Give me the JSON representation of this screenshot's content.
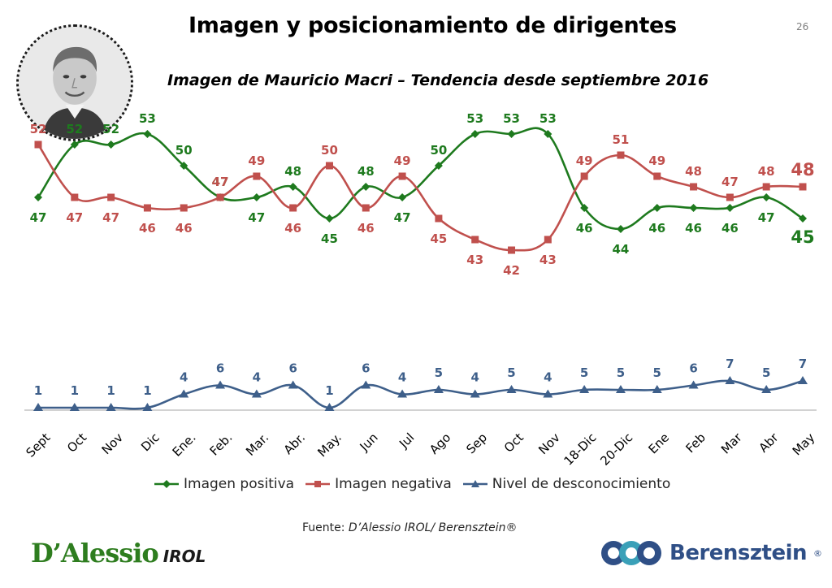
{
  "header": {
    "title": "Imagen y posicionamiento de dirigentes",
    "page_number": "26",
    "subtitle": "Imagen de Mauricio Macri – Tendencia desde septiembre 2016"
  },
  "portrait": {
    "icon": "person-portrait-icon"
  },
  "colors": {
    "positive": "#1e7a1e",
    "negative": "#c0504d",
    "unknown": "#3e5f8a",
    "axis": "#a6a6a6"
  },
  "chart_data": {
    "type": "line",
    "categories": [
      "Sept",
      "Oct",
      "Nov",
      "Dic",
      "Ene.",
      "Feb.",
      "Mar.",
      "Abr.",
      "May.",
      "Jun",
      "Jul",
      "Ago",
      "Sep",
      "Oct",
      "Nov",
      "18-Dic",
      "20-Dic",
      "Ene",
      "Feb",
      "Mar",
      "Abr",
      "May"
    ],
    "series": [
      {
        "name": "Imagen positiva",
        "marker": "diamond",
        "values": [
          47,
          52,
          52,
          53,
          50,
          47,
          47,
          48,
          45,
          48,
          47,
          50,
          53,
          53,
          53,
          46,
          44,
          46,
          46,
          46,
          47,
          45
        ]
      },
      {
        "name": "Imagen negativa",
        "marker": "square",
        "values": [
          52,
          47,
          47,
          46,
          46,
          47,
          49,
          46,
          50,
          46,
          49,
          45,
          43,
          42,
          43,
          49,
          51,
          49,
          48,
          47,
          48,
          48
        ]
      },
      {
        "name": "Nivel de desconocimiento",
        "marker": "triangle",
        "values": [
          1,
          1,
          1,
          1,
          4,
          6,
          4,
          6,
          1,
          6,
          4,
          5,
          4,
          5,
          4,
          5,
          5,
          5,
          6,
          7,
          5,
          7
        ]
      }
    ],
    "legend_position": "bottom",
    "grid": false,
    "data_labels": true
  },
  "footer": {
    "source_prefix": "Fuente: ",
    "source_text": "D’Alessio IROL/ Berensztein®",
    "logo_left_main": "D’Alessio",
    "logo_left_sub": "IROL",
    "logo_right_brand": "Berensztein",
    "logo_right_reg": "®"
  }
}
